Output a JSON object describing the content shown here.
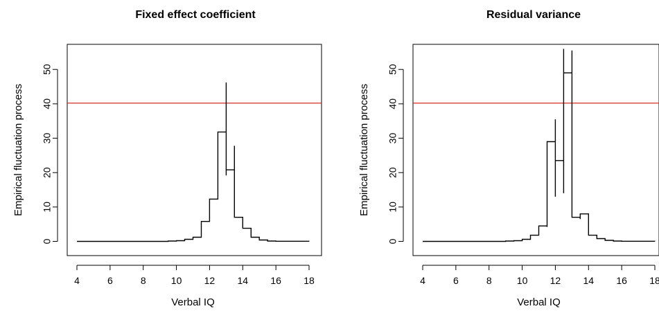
{
  "chart_data": [
    {
      "type": "line",
      "title": "Fixed effect coefficient",
      "xlabel": "Verbal IQ",
      "ylabel": "Empirical fluctuation process",
      "xlim": [
        4,
        18
      ],
      "ylim": [
        0,
        55
      ],
      "xticks": [
        "4",
        "6",
        "8",
        "10",
        "12",
        "14",
        "16",
        "18"
      ],
      "yticks": [
        "0",
        "10",
        "20",
        "30",
        "40",
        "50"
      ],
      "critical_value": 40.2,
      "critical_color": "#d62a1e",
      "line_color": "#000000",
      "grid": false,
      "series": [
        {
          "x": [
            4,
            8,
            9,
            9.5,
            10,
            10.5,
            10.5,
            11,
            11,
            11.5,
            11.5,
            12,
            12,
            12.5,
            12.5,
            13,
            13,
            13,
            13,
            13.5,
            13.5,
            13.5,
            14,
            14,
            14.5,
            14.5,
            15,
            15,
            15.5,
            15.5,
            16,
            18
          ],
          "y": [
            0,
            0,
            0,
            0.1,
            0.2,
            0.3,
            0.6,
            0.6,
            1.2,
            1.2,
            5.8,
            5.8,
            12.3,
            12.3,
            31.8,
            30.5,
            46.2,
            19.2,
            20.8,
            20.8,
            27.8,
            7.0,
            6.5,
            3.8,
            3.8,
            1.2,
            1.2,
            0.4,
            0.4,
            0.1,
            0.05,
            0
          ]
        }
      ]
    },
    {
      "type": "line",
      "title": "Residual variance",
      "xlabel": "Verbal IQ",
      "ylabel": "Empirical fluctuation process",
      "xlim": [
        4,
        18
      ],
      "ylim": [
        0,
        55
      ],
      "xticks": [
        "4",
        "6",
        "8",
        "10",
        "12",
        "14",
        "16",
        "18"
      ],
      "yticks": [
        "0",
        "10",
        "20",
        "30",
        "40",
        "50"
      ],
      "critical_value": 40.2,
      "critical_color": "#d62a1e",
      "line_color": "#000000",
      "grid": false,
      "series": [
        {
          "x": [
            4,
            8,
            9,
            9.5,
            10,
            10,
            10.5,
            10.5,
            11,
            11,
            11.5,
            11.5,
            12,
            12,
            12,
            12,
            12.5,
            12.5,
            12.5,
            12.5,
            13,
            13,
            13,
            13.5,
            13.5,
            14,
            14,
            14.5,
            14.5,
            15,
            15,
            15.5,
            15.5,
            16,
            18
          ],
          "y": [
            0,
            0,
            0.1,
            0.2,
            0.4,
            0.6,
            0.8,
            1.8,
            1.8,
            4.5,
            4.2,
            29.0,
            27.5,
            13.0,
            35.5,
            23.5,
            22.5,
            14.0,
            56.0,
            49.0,
            52.0,
            55.5,
            7.0,
            6.5,
            8.0,
            3.5,
            1.8,
            1.6,
            0.8,
            0.6,
            0.3,
            0.2,
            0.1,
            0.05,
            0
          ]
        }
      ]
    }
  ]
}
